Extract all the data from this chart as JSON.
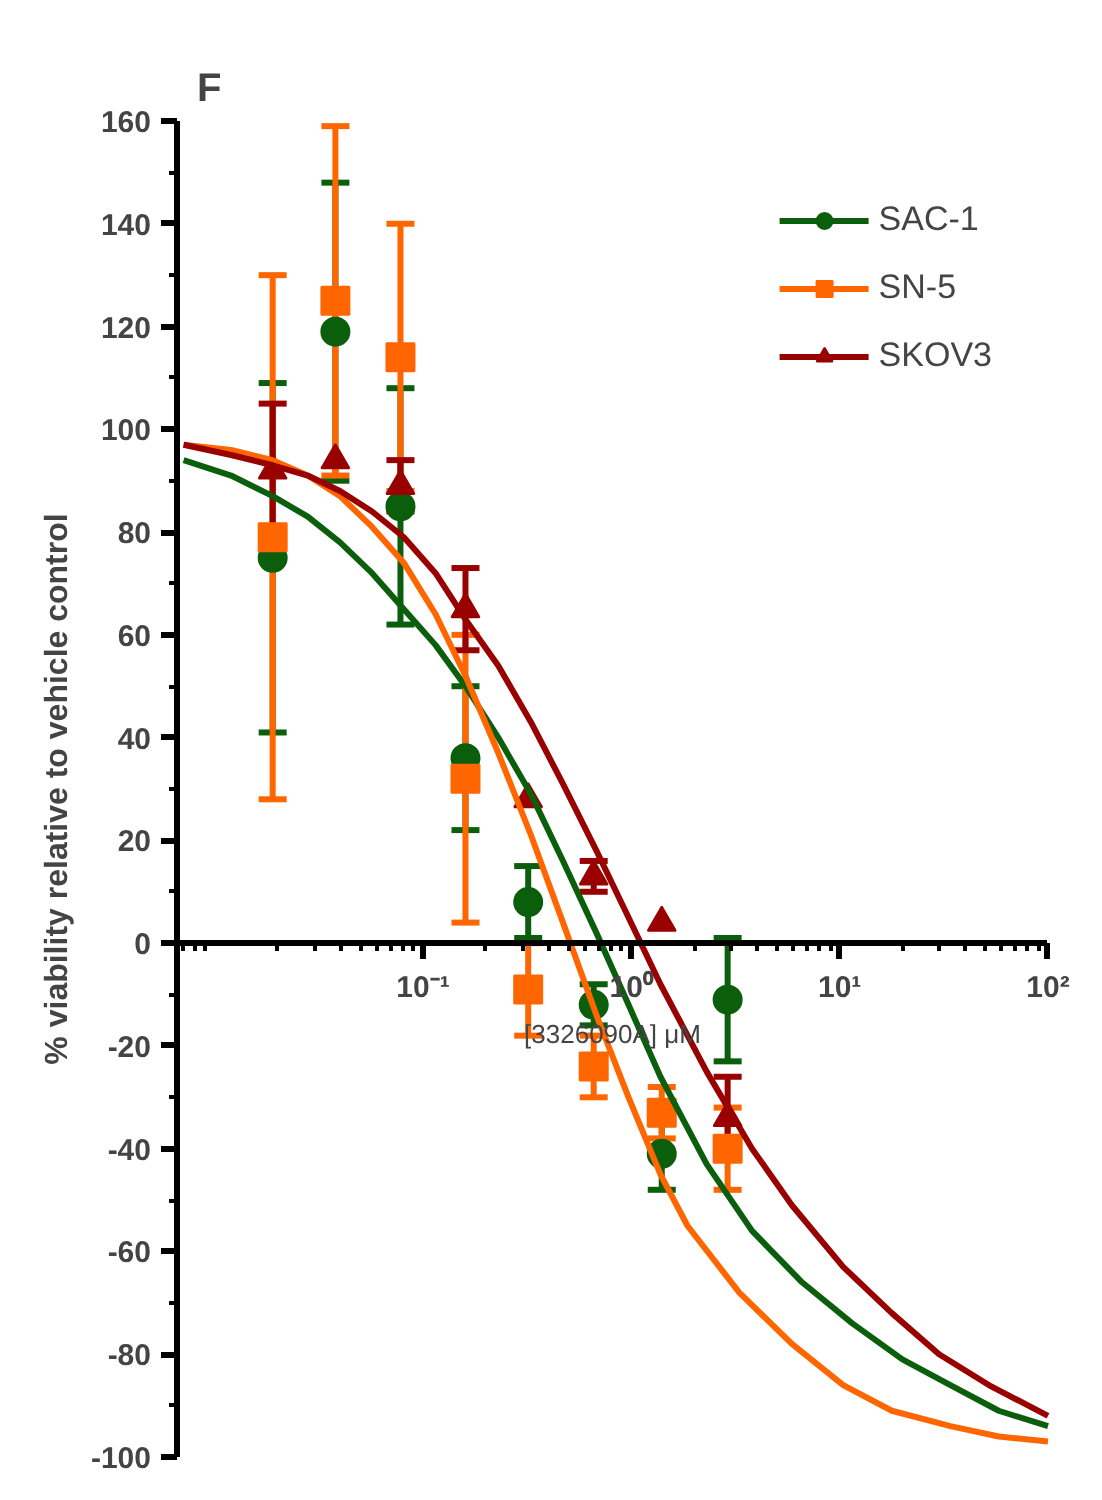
{
  "chart_data": {
    "type": "scatter",
    "title": "F",
    "xlabel": "[3326090A] μM",
    "ylabel": "% viability relative to vehicle control",
    "log": "x",
    "xlim": [
      0.0066,
      100
    ],
    "ylim": [
      -100,
      160
    ],
    "xticks": [
      {
        "value": 0.1,
        "label": "10⁻¹"
      },
      {
        "value": 1,
        "label": "10⁰"
      },
      {
        "value": 10,
        "label": "10¹"
      },
      {
        "value": 100,
        "label": "10²"
      }
    ],
    "yticks": [
      -100,
      -80,
      -60,
      -40,
      -20,
      0,
      20,
      40,
      60,
      80,
      100,
      120,
      140,
      160
    ],
    "legend": "top right",
    "grid": false,
    "series": [
      {
        "name": "SAC-1",
        "color": "#0b5e0b",
        "marker": "circle",
        "x": [
          0.019,
          0.038,
          0.078,
          0.16,
          0.32,
          0.66,
          1.4,
          2.9
        ],
        "values": [
          75,
          119,
          85,
          36,
          8,
          -12,
          -41,
          -11
        ],
        "errors": [
          34,
          29,
          23,
          14,
          7,
          4,
          7,
          12
        ]
      },
      {
        "name": "SN-5",
        "color": "#ff6600",
        "marker": "square",
        "x": [
          0.019,
          0.038,
          0.078,
          0.16,
          0.32,
          0.66,
          1.4,
          2.9
        ],
        "values": [
          79,
          125,
          114,
          32,
          -9,
          -24,
          -33,
          -40
        ],
        "errors": [
          51,
          34,
          26,
          28,
          9,
          6,
          5,
          8
        ]
      },
      {
        "name": "SKOV3",
        "color": "#990000",
        "marker": "triangle",
        "x": [
          0.019,
          0.038,
          0.078,
          0.16,
          0.32,
          0.66,
          1.4,
          2.9
        ],
        "values": [
          92,
          94,
          89,
          65,
          28,
          13,
          4,
          -34
        ],
        "errors": [
          13,
          null,
          5,
          8,
          null,
          3,
          null,
          8
        ]
      },
      {
        "type": "line",
        "color": "#0b5e0b",
        "marker": "none",
        "x": [
          0.0071,
          0.012,
          0.019,
          0.028,
          0.04,
          0.057,
          0.081,
          0.115,
          0.16,
          0.23,
          0.33,
          0.47,
          0.68,
          0.97,
          1.38,
          2.3,
          3.8,
          6.6,
          11.5,
          20,
          34,
          58,
          100
        ],
        "values": [
          94,
          91,
          87,
          83,
          78,
          72,
          65,
          58,
          50,
          40,
          29,
          16,
          2,
          -12,
          -26,
          -43,
          -56,
          -66,
          -74,
          -81,
          -86,
          -91,
          -94
        ]
      },
      {
        "type": "line",
        "color": "#ff6600",
        "marker": "none",
        "x": [
          0.0071,
          0.012,
          0.019,
          0.028,
          0.04,
          0.057,
          0.081,
          0.115,
          0.16,
          0.23,
          0.33,
          0.47,
          0.68,
          0.97,
          1.38,
          1.86,
          3.3,
          5.9,
          10.4,
          17.8,
          34,
          58,
          100
        ],
        "values": [
          97,
          96,
          94,
          91,
          87,
          81,
          74,
          64,
          52,
          37,
          21,
          4,
          -14,
          -30,
          -45,
          -55,
          -68,
          -78,
          -86,
          -91,
          -94,
          -96,
          -97
        ]
      },
      {
        "type": "line",
        "color": "#990000",
        "marker": "none",
        "x": [
          0.0071,
          0.012,
          0.019,
          0.028,
          0.04,
          0.057,
          0.081,
          0.115,
          0.16,
          0.23,
          0.33,
          0.47,
          0.68,
          0.97,
          1.38,
          2.3,
          3.8,
          5.9,
          10.4,
          17.8,
          30,
          52,
          100
        ],
        "values": [
          97,
          95,
          93,
          91,
          88,
          84,
          79,
          72,
          63,
          54,
          43,
          31,
          18,
          5,
          -8,
          -25,
          -40,
          -51,
          -63,
          -72,
          -80,
          -86,
          -92
        ]
      }
    ]
  }
}
